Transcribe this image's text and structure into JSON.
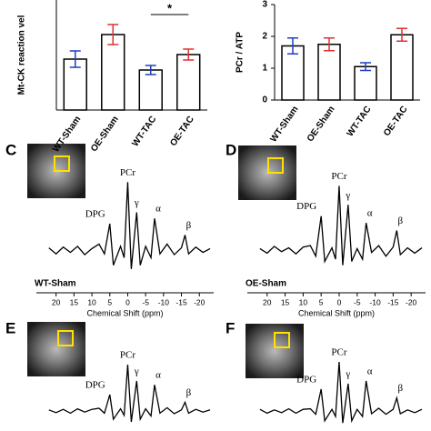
{
  "chart_data": [
    {
      "type": "bar",
      "y_label": "Mt-CK reaction vel",
      "categories": [
        "WT-Sham",
        "OE-Sham",
        "WT-TAC",
        "OE-TAC"
      ],
      "values": [
        56,
        83,
        44,
        61
      ],
      "errors": [
        9,
        11,
        5,
        6
      ],
      "colors": [
        "#1f3fbf",
        "#e03030",
        "#1f3fbf",
        "#e03030"
      ],
      "ylim": [
        0,
        121
      ],
      "annotation": "*"
    },
    {
      "type": "bar",
      "y_label": "PCr / ATP",
      "categories": [
        "WT-Sham",
        "OE-Sham",
        "WT-TAC",
        "OE-TAC"
      ],
      "values": [
        1.7,
        1.75,
        1.05,
        2.05
      ],
      "errors": [
        0.25,
        0.2,
        0.12,
        0.2
      ],
      "colors": [
        "#1f3fbf",
        "#e03030",
        "#1f3fbf",
        "#e03030"
      ],
      "ylim": [
        0,
        3
      ],
      "yticks": [
        0,
        1,
        2,
        3
      ]
    },
    {
      "type": "line",
      "panel": "C",
      "label": "WT-Sham",
      "x_label": "Chemical Shift (ppm)",
      "peak_labels": [
        "DPG",
        "PCr",
        "γ",
        "α",
        "β"
      ],
      "x": [
        22,
        20,
        18,
        16,
        14,
        12,
        10,
        8,
        6.5,
        5,
        4,
        2,
        1,
        0,
        -1,
        -2.5,
        -3.5,
        -5,
        -6.5,
        -7.5,
        -9,
        -11,
        -13,
        -15,
        -16,
        -17,
        -19,
        -21,
        -23
      ],
      "values": [
        0.3,
        -0.5,
        0.4,
        -0.3,
        0.5,
        -0.6,
        0.2,
        0.8,
        -0.5,
        3.5,
        -2,
        0.5,
        -1,
        9,
        -2.5,
        5,
        -2,
        0.5,
        -1,
        4.2,
        -0.5,
        0.8,
        -0.6,
        0.3,
        2,
        -0.5,
        0.4,
        -0.3,
        0.2
      ],
      "xlim": [
        25.5,
        -24
      ],
      "ylim": [
        -3,
        10
      ],
      "xticks": [
        20,
        15,
        10,
        5,
        0,
        -5,
        -10,
        -15,
        -20
      ],
      "color": "#000"
    },
    {
      "type": "line",
      "panel": "D",
      "label": "OE-Sham",
      "x_label": "Chemical Shift (ppm)",
      "peak_labels": [
        "DPG",
        "PCr",
        "γ",
        "α",
        "β"
      ],
      "x": [
        22,
        20,
        18,
        16,
        14,
        12,
        10,
        8,
        6.5,
        5,
        4,
        2,
        1,
        0,
        -1,
        -2.5,
        -3.5,
        -5,
        -6.5,
        -7.5,
        -9,
        -11,
        -13,
        -15,
        -16,
        -17,
        -19,
        -21,
        -23
      ],
      "values": [
        0.2,
        -0.4,
        0.5,
        -0.2,
        0.3,
        -0.5,
        0.4,
        0.6,
        -0.8,
        4.5,
        -1.5,
        0.3,
        -1.2,
        8.5,
        -2,
        6,
        -1.5,
        0.2,
        -1.2,
        3.6,
        -0.3,
        0.6,
        -0.8,
        0.4,
        2.6,
        -0.6,
        0.3,
        -0.4,
        0.3
      ],
      "xlim": [
        25.5,
        -24
      ],
      "ylim": [
        -3,
        10
      ],
      "xticks": [
        20,
        15,
        10,
        5,
        0,
        -5,
        -10,
        -15,
        -20
      ],
      "color": "#000"
    },
    {
      "type": "line",
      "panel": "E",
      "peak_labels": [
        "DPG",
        "PCr",
        "γ",
        "α",
        "β"
      ],
      "x": [
        22,
        20,
        18,
        16,
        14,
        12,
        10,
        8,
        6.5,
        5,
        4,
        2,
        1,
        0,
        -1,
        -2.5,
        -3.5,
        -5,
        -6.5,
        -7.5,
        -9,
        -11,
        -13,
        -15,
        -16,
        -17,
        -19,
        -21,
        -23
      ],
      "values": [
        0.2,
        -0.3,
        0.3,
        -0.4,
        0.4,
        -0.2,
        0.3,
        0.5,
        -0.4,
        3,
        -1.5,
        0.4,
        -0.8,
        8.5,
        -2,
        5.5,
        -1.5,
        0.4,
        -0.9,
        4.8,
        -0.4,
        0.6,
        -0.5,
        0.2,
        1.6,
        -0.4,
        0.3,
        -0.2,
        0.2
      ],
      "xlim": [
        25.5,
        -24
      ],
      "ylim": [
        -3,
        10
      ],
      "color": "#000"
    },
    {
      "type": "line",
      "panel": "F",
      "peak_labels": [
        "DPG",
        "PCr",
        "γ",
        "α",
        "β"
      ],
      "x": [
        22,
        20,
        18,
        16,
        14,
        12,
        10,
        8,
        6.5,
        5,
        4,
        2,
        1,
        0,
        -1,
        -2.5,
        -3.5,
        -5,
        -6.5,
        -7.5,
        -9,
        -11,
        -13,
        -15,
        -16,
        -17,
        -19,
        -21,
        -23
      ],
      "values": [
        0.3,
        -0.4,
        0.2,
        -0.3,
        0.4,
        -0.4,
        0.3,
        0.4,
        -0.6,
        4,
        -1.8,
        0.3,
        -1,
        9,
        -2.2,
        5,
        -1.8,
        0.3,
        -1,
        5.5,
        -0.5,
        0.5,
        -0.6,
        0.3,
        2.4,
        -0.5,
        0.2,
        -0.3,
        0.3
      ],
      "xlim": [
        25.5,
        -24
      ],
      "ylim": [
        -3,
        10
      ],
      "color": "#000"
    }
  ]
}
